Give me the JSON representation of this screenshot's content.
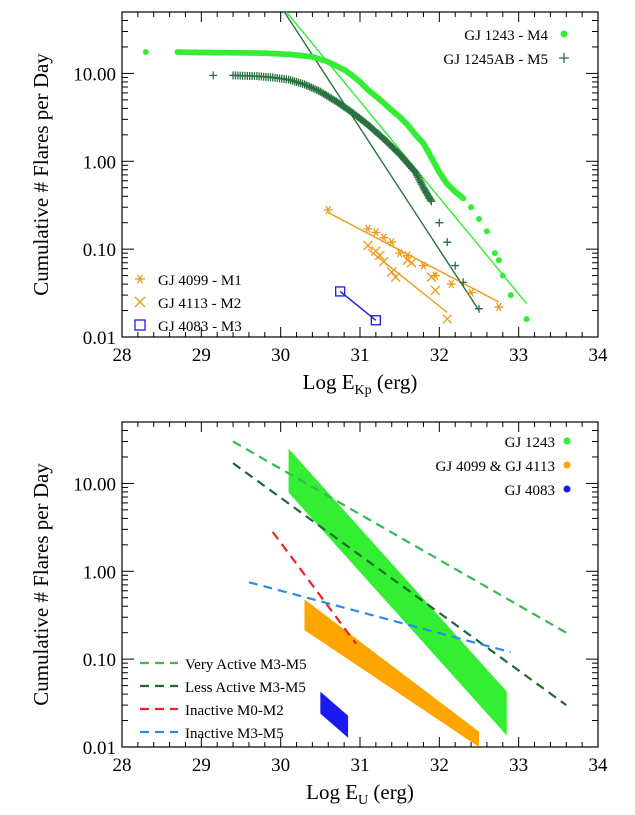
{
  "chart_data": [
    {
      "type": "scatter",
      "ylabel": "Cumulative # Flares per Day",
      "xlabel_main": "Log E",
      "xlabel_sub": "Kp",
      "xlabel_tail": " (erg)",
      "xlim": [
        28,
        34
      ],
      "ylim": [
        0.01,
        50
      ],
      "y_scale": "log",
      "x_ticks": [
        "28",
        "29",
        "30",
        "31",
        "32",
        "33",
        "34"
      ],
      "y_ticks": [
        {
          "value": 10,
          "label": "10.00"
        },
        {
          "value": 1,
          "label": "1.00"
        },
        {
          "value": 0.1,
          "label": "0.10"
        },
        {
          "value": 0.01,
          "label": "0.01"
        }
      ],
      "legend_top_right": [
        {
          "label": "GJ 1243 - M4",
          "color": "#33ee33",
          "marker": "dot"
        },
        {
          "label": "GJ 1245AB - M5",
          "color": "#2a7040",
          "marker": "plus"
        }
      ],
      "legend_bottom_left": [
        {
          "label": "GJ 4099 - M1",
          "color": "#ee9a1a",
          "marker": "asterisk"
        },
        {
          "label": "GJ 4113 - M2",
          "color": "#ee9a1a",
          "marker": "x"
        },
        {
          "label": "GJ 4083 - M3",
          "color": "#1a1aee",
          "marker": "square"
        }
      ],
      "series": [
        {
          "name": "GJ 1243 - M4",
          "color": "#33ee33",
          "marker": "dot",
          "points": [
            [
              28.3,
              17.5
            ],
            [
              28.7,
              17.5
            ],
            [
              29.0,
              17.3
            ],
            [
              29.4,
              17.2
            ],
            [
              29.8,
              17.0
            ],
            [
              30.1,
              16.5
            ],
            [
              30.4,
              15.5
            ],
            [
              30.6,
              13.5
            ],
            [
              30.8,
              11.0
            ],
            [
              30.9,
              9.5
            ],
            [
              31.0,
              8.0
            ],
            [
              31.1,
              6.5
            ],
            [
              31.2,
              5.5
            ],
            [
              31.3,
              4.6
            ],
            [
              31.4,
              3.8
            ],
            [
              31.5,
              3.2
            ],
            [
              31.6,
              2.6
            ],
            [
              31.7,
              2.0
            ],
            [
              31.8,
              1.6
            ],
            [
              31.9,
              1.1
            ],
            [
              32.0,
              0.75
            ],
            [
              32.1,
              0.55
            ],
            [
              32.2,
              0.45
            ],
            [
              32.3,
              0.38
            ],
            [
              32.4,
              0.3
            ],
            [
              32.5,
              0.22
            ],
            [
              32.6,
              0.16
            ],
            [
              32.7,
              0.09
            ],
            [
              32.75,
              0.075
            ],
            [
              32.8,
              0.05
            ],
            [
              32.9,
              0.03
            ],
            [
              33.1,
              0.016
            ]
          ],
          "fit": [
            [
              30.0,
              60
            ],
            [
              33.1,
              0.024
            ]
          ]
        },
        {
          "name": "GJ 1245AB - M5",
          "color": "#2a7040",
          "marker": "plus",
          "points": [
            [
              29.15,
              9.5
            ],
            [
              29.4,
              9.5
            ],
            [
              29.7,
              9.3
            ],
            [
              29.9,
              9.0
            ],
            [
              30.1,
              8.5
            ],
            [
              30.3,
              7.5
            ],
            [
              30.5,
              6.2
            ],
            [
              30.7,
              4.8
            ],
            [
              30.9,
              3.6
            ],
            [
              31.1,
              2.6
            ],
            [
              31.3,
              1.8
            ],
            [
              31.5,
              1.2
            ],
            [
              31.7,
              0.75
            ],
            [
              31.8,
              0.5
            ],
            [
              31.9,
              0.35
            ],
            [
              32.0,
              0.2
            ],
            [
              32.1,
              0.12
            ],
            [
              32.2,
              0.065
            ],
            [
              32.3,
              0.042
            ],
            [
              32.5,
              0.021
            ]
          ],
          "fit": [
            [
              30.0,
              58
            ],
            [
              32.5,
              0.02
            ]
          ]
        },
        {
          "name": "GJ 4099 - M1",
          "color": "#ee9a1a",
          "marker": "asterisk",
          "points": [
            [
              30.6,
              0.28
            ],
            [
              31.1,
              0.17
            ],
            [
              31.2,
              0.155
            ],
            [
              31.3,
              0.135
            ],
            [
              31.4,
              0.12
            ],
            [
              31.5,
              0.09
            ],
            [
              31.6,
              0.085
            ],
            [
              31.8,
              0.065
            ],
            [
              31.95,
              0.05
            ],
            [
              32.15,
              0.04
            ],
            [
              32.4,
              0.032
            ],
            [
              32.75,
              0.022
            ]
          ],
          "fit": [
            [
              30.6,
              0.26
            ],
            [
              32.75,
              0.025
            ]
          ]
        },
        {
          "name": "GJ 4113 - M2",
          "color": "#ee9a1a",
          "marker": "x",
          "points": [
            [
              31.1,
              0.11
            ],
            [
              31.2,
              0.095
            ],
            [
              31.25,
              0.085
            ],
            [
              31.3,
              0.072
            ],
            [
              31.4,
              0.055
            ],
            [
              31.45,
              0.048
            ],
            [
              31.6,
              0.075
            ],
            [
              31.65,
              0.07
            ],
            [
              31.9,
              0.048
            ],
            [
              31.95,
              0.034
            ],
            [
              32.1,
              0.016
            ]
          ],
          "fit": [
            [
              31.1,
              0.1
            ],
            [
              32.1,
              0.019
            ]
          ]
        },
        {
          "name": "GJ 4083 - M3",
          "color": "#1a1aee",
          "marker": "square",
          "points": [
            [
              30.75,
              0.033
            ],
            [
              31.2,
              0.0155
            ]
          ],
          "fit": [
            [
              30.75,
              0.033
            ],
            [
              31.2,
              0.0155
            ]
          ]
        }
      ]
    },
    {
      "type": "line",
      "ylabel": "Cumulative # Flares per Day",
      "xlabel_main": "Log E",
      "xlabel_sub": "U",
      "xlabel_tail": " (erg)",
      "xlim": [
        28,
        34
      ],
      "ylim": [
        0.01,
        50
      ],
      "y_scale": "log",
      "x_ticks": [
        "28",
        "29",
        "30",
        "31",
        "32",
        "33",
        "34"
      ],
      "y_ticks": [
        {
          "value": 10,
          "label": "10.00"
        },
        {
          "value": 1,
          "label": "1.00"
        },
        {
          "value": 0.1,
          "label": "0.10"
        },
        {
          "value": 0.01,
          "label": "0.01"
        }
      ],
      "legend_top_right": [
        {
          "label": "GJ 1243",
          "color": "#33ee33"
        },
        {
          "label": "GJ 4099 & GJ 4113",
          "color": "#ffa500"
        },
        {
          "label": "GJ 4083",
          "color": "#1a1aee"
        }
      ],
      "legend_bottom_left": [
        {
          "label": "Very Active M3-M5",
          "color": "#33bb55"
        },
        {
          "label": "Less Active M3-M5",
          "color": "#1a6a2a"
        },
        {
          "label": "Inactive M0-M2",
          "color": "#ee2222"
        },
        {
          "label": "Inactive M3-M5",
          "color": "#2a8aee"
        }
      ],
      "bands": [
        {
          "name": "GJ 1243",
          "color": "#33ee33",
          "start": [
            30.1,
            14.0
          ],
          "end": [
            32.85,
            0.024
          ],
          "width_dex": 0.5
        },
        {
          "name": "GJ 4099 & GJ 4113",
          "color": "#ffa500",
          "start": [
            30.3,
            0.32
          ],
          "end": [
            32.5,
            0.01
          ],
          "width_dex": 0.35
        },
        {
          "name": "GJ 4083",
          "color": "#1a1aee",
          "start": [
            30.5,
            0.032
          ],
          "end": [
            30.85,
            0.017
          ],
          "width_dex": 0.25
        }
      ],
      "lines": [
        {
          "name": "Very Active M3-M5",
          "color": "#33bb55",
          "points": [
            [
              29.4,
              30
            ],
            [
              33.6,
              0.2
            ]
          ]
        },
        {
          "name": "Less Active M3-M5",
          "color": "#1a6a2a",
          "points": [
            [
              29.4,
              17
            ],
            [
              33.6,
              0.03
            ]
          ]
        },
        {
          "name": "Inactive M0-M2",
          "color": "#ee2222",
          "points": [
            [
              29.9,
              2.8
            ],
            [
              30.95,
              0.15
            ]
          ]
        },
        {
          "name": "Inactive M3-M5",
          "color": "#2a8aee",
          "points": [
            [
              29.6,
              0.75
            ],
            [
              32.9,
              0.12
            ]
          ]
        }
      ]
    }
  ]
}
